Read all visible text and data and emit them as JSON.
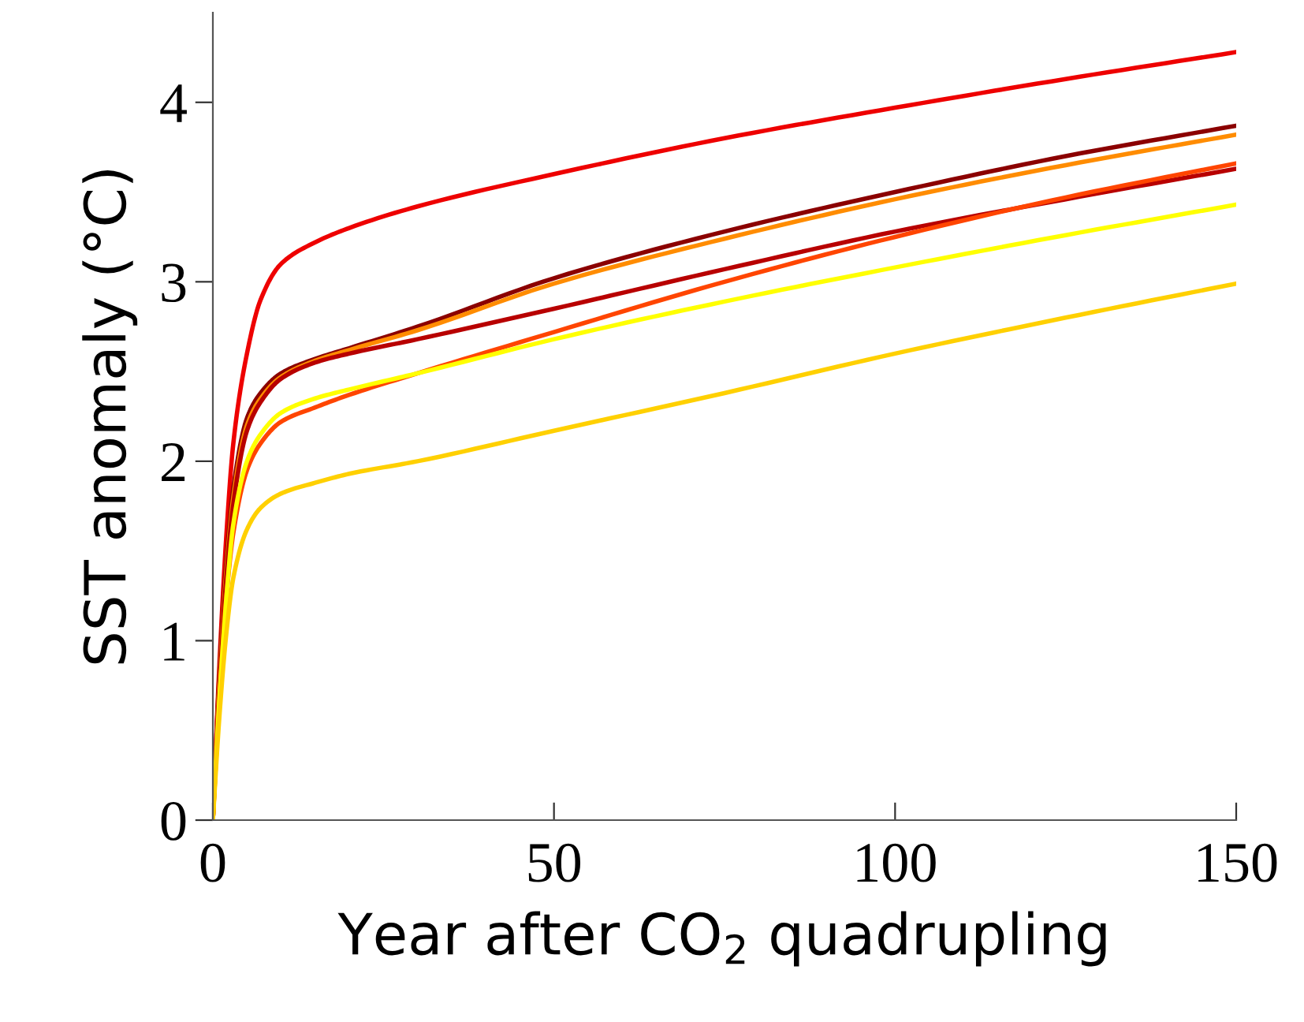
{
  "chart_data": {
    "type": "line",
    "xlabel": "Year after CO$_{2}$ quadrupling",
    "ylabel": "SST anomaly (°C)",
    "x": [
      0,
      1,
      2,
      3,
      5,
      7,
      10,
      15,
      20,
      30,
      50,
      75,
      100,
      125,
      150
    ],
    "xlim": [
      0,
      150
    ],
    "xticks": [
      0,
      50,
      100,
      150
    ],
    "ylim": [
      0,
      4.5
    ],
    "yticks": [
      0,
      1,
      2,
      3,
      4
    ],
    "grid": false,
    "legend": false,
    "series": [
      {
        "color": "#ee0000",
        "values": [
          0,
          0.9,
          1.6,
          2.1,
          2.6,
          2.9,
          3.1,
          3.22,
          3.3,
          3.42,
          3.6,
          3.8,
          3.97,
          4.13,
          4.28
        ]
      },
      {
        "color": "#8b0000",
        "values": [
          0,
          0.85,
          1.45,
          1.85,
          2.24,
          2.38,
          2.49,
          2.57,
          2.63,
          2.75,
          3.02,
          3.28,
          3.5,
          3.7,
          3.87
        ]
      },
      {
        "color": "#ff8c00",
        "values": [
          0,
          0.8,
          1.4,
          1.8,
          2.2,
          2.35,
          2.47,
          2.56,
          2.62,
          2.73,
          2.99,
          3.24,
          3.46,
          3.65,
          3.82
        ]
      },
      {
        "color": "#b80000",
        "values": [
          0,
          0.76,
          1.36,
          1.76,
          2.17,
          2.33,
          2.46,
          2.55,
          2.6,
          2.68,
          2.85,
          3.07,
          3.28,
          3.46,
          3.63
        ]
      },
      {
        "color": "#ff4500",
        "values": [
          0,
          0.7,
          1.25,
          1.6,
          1.95,
          2.1,
          2.22,
          2.3,
          2.37,
          2.49,
          2.72,
          3.0,
          3.25,
          3.47,
          3.66
        ]
      },
      {
        "color": "#ffff00",
        "values": [
          0,
          0.7,
          1.25,
          1.65,
          2.0,
          2.15,
          2.27,
          2.35,
          2.4,
          2.49,
          2.68,
          2.89,
          3.08,
          3.26,
          3.43
        ]
      },
      {
        "color": "#ffd000",
        "values": [
          0,
          0.6,
          1.05,
          1.35,
          1.62,
          1.74,
          1.82,
          1.88,
          1.93,
          2.0,
          2.17,
          2.38,
          2.6,
          2.8,
          2.99
        ]
      }
    ]
  }
}
